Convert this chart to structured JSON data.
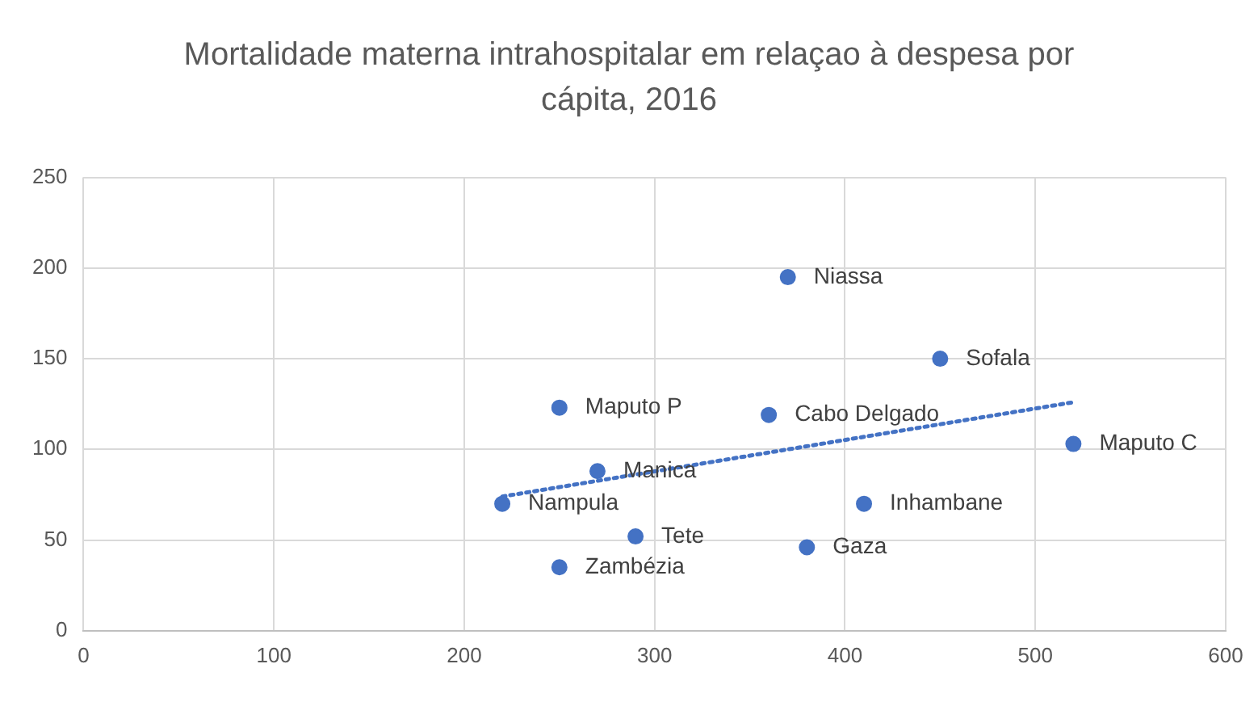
{
  "chart_data": {
    "type": "scatter",
    "title": "Mortalidade materna intrahospitalar em relaçao à despesa por cápita, 2016",
    "x": [
      370,
      450,
      250,
      360,
      520,
      270,
      220,
      410,
      290,
      380,
      250
    ],
    "series": [
      {
        "type": "scatter",
        "color": "#4472c4",
        "marker": "circle",
        "values": [
          195,
          150,
          123,
          119,
          103,
          88,
          70,
          70,
          52,
          46,
          35
        ]
      },
      {
        "type": "line",
        "color": "#4472c4",
        "line_style": "dotted",
        "marker": "none",
        "x": [
          220,
          520
        ],
        "values": [
          74,
          126
        ]
      }
    ],
    "annotations": [
      {
        "text": "Niassa",
        "x": 370,
        "y": 195
      },
      {
        "text": "Sofala",
        "x": 450,
        "y": 150
      },
      {
        "text": "Maputo P",
        "x": 250,
        "y": 123
      },
      {
        "text": "Cabo Delgado",
        "x": 360,
        "y": 119
      },
      {
        "text": "Maputo C",
        "x": 520,
        "y": 103
      },
      {
        "text": "Manica",
        "x": 270,
        "y": 88
      },
      {
        "text": "Nampula",
        "x": 220,
        "y": 70
      },
      {
        "text": "Inhambane",
        "x": 410,
        "y": 70
      },
      {
        "text": "Tete",
        "x": 290,
        "y": 52
      },
      {
        "text": "Gaza",
        "x": 380,
        "y": 46
      },
      {
        "text": "Zambézia",
        "x": 250,
        "y": 35
      }
    ],
    "xlim": [
      0,
      600
    ],
    "xticks": [
      0,
      100,
      200,
      300,
      400,
      500,
      600
    ],
    "ylim": [
      0,
      250
    ],
    "yticks": [
      0,
      50,
      100,
      150,
      200,
      250
    ],
    "grid": true,
    "legend": false
  }
}
